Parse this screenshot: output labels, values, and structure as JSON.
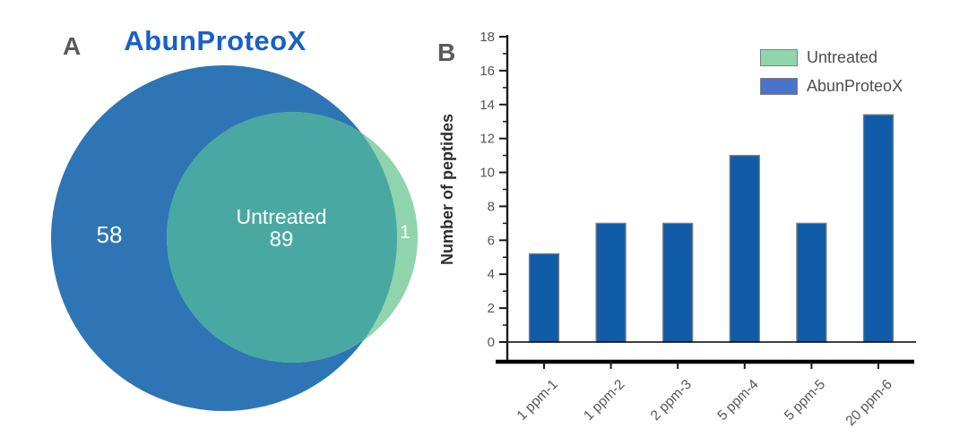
{
  "figure": {
    "panel_a_label": "A",
    "panel_b_label": "B"
  },
  "chart_data": [
    {
      "type": "venn",
      "panel": "A",
      "title": "AbunProteoX",
      "sets": [
        "AbunProteoX",
        "Untreated"
      ],
      "intersection_label": "Untreated",
      "counts": {
        "abunproteox_only": 58,
        "intersection": 89,
        "untreated_only": 1
      },
      "colors": {
        "abunproteox": "#2e75b5",
        "intersection": "#4aa8a2",
        "untreated_only": "#8fd4ad",
        "title": "#1861c3"
      }
    },
    {
      "type": "bar",
      "panel": "B",
      "categories": [
        "1 ppm-1",
        "1 ppm-2",
        "2 ppm-3",
        "5 ppm-4",
        "5 ppm-5",
        "20 ppm-6"
      ],
      "series": [
        {
          "name": "AbunProteoX",
          "values": [
            5.2,
            7,
            7,
            11,
            7,
            13.4
          ]
        }
      ],
      "ylabel": "Number of peptides",
      "ylim": [
        0,
        18
      ],
      "ytick_step": 2,
      "grid": false,
      "bar_color": "#105ca8",
      "bar_edge_color": "#7f7f7f",
      "legend_position": "upper right",
      "legend": [
        {
          "label": "Untreated",
          "color": "#8fd6ac"
        },
        {
          "label": "AbunProteoX",
          "color": "#4a73cc"
        }
      ]
    }
  ]
}
